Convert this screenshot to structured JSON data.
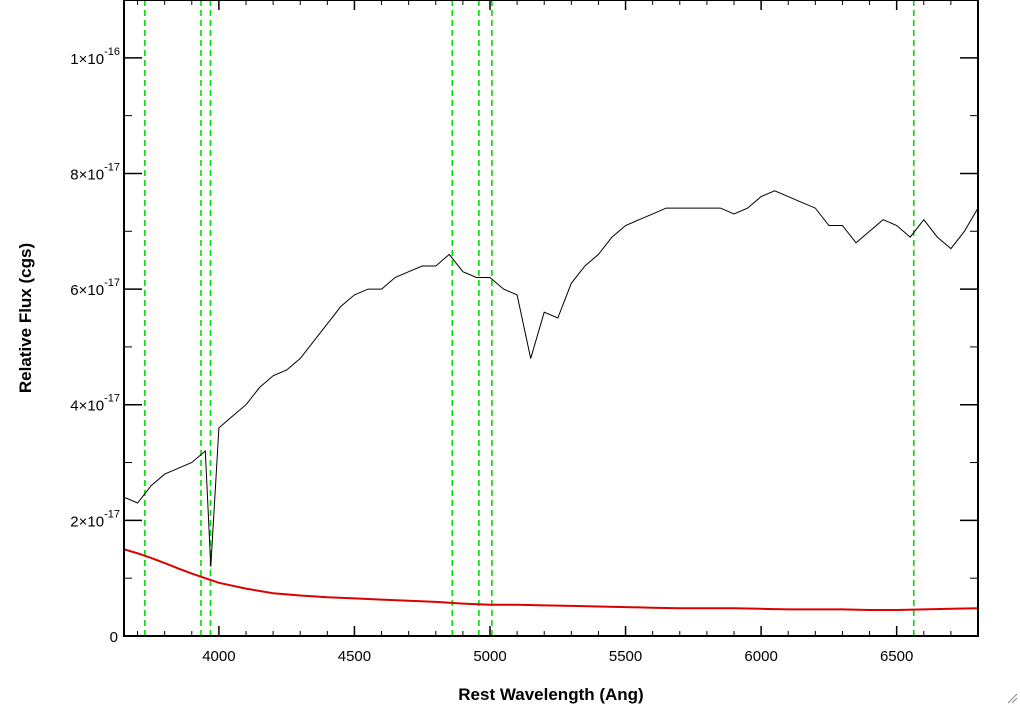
{
  "chart_data": {
    "type": "line",
    "title": "",
    "xlabel": "Rest Wavelength (Ang)",
    "ylabel": "Relative Flux (cgs)",
    "xlim": [
      3650,
      6800
    ],
    "ylim": [
      0,
      1.1e-16
    ],
    "x_ticks": [
      4000,
      4500,
      5000,
      5500,
      6000,
      6500
    ],
    "x_tick_labels": [
      "4000",
      "4500",
      "5000",
      "5500",
      "6000",
      "6500"
    ],
    "y_ticks": [
      0,
      2e-17,
      4e-17,
      6e-17,
      8e-17,
      1e-16
    ],
    "y_tick_labels": [
      {
        "mantissa": "0",
        "exponent": ""
      },
      {
        "mantissa": "2×10",
        "exponent": "-17"
      },
      {
        "mantissa": "4×10",
        "exponent": "-17"
      },
      {
        "mantissa": "6×10",
        "exponent": "-17"
      },
      {
        "mantissa": "8×10",
        "exponent": "-17"
      },
      {
        "mantissa": "1×10",
        "exponent": "-16"
      }
    ],
    "grid": false,
    "legend": "none",
    "series": [
      {
        "color": "#000000",
        "x": [
          3650,
          3700,
          3750,
          3800,
          3850,
          3900,
          3950,
          3970,
          4000,
          4050,
          4100,
          4150,
          4200,
          4250,
          4300,
          4350,
          4400,
          4450,
          4500,
          4550,
          4600,
          4650,
          4700,
          4750,
          4800,
          4850,
          4900,
          4950,
          5000,
          5050,
          5100,
          5150,
          5200,
          5250,
          5300,
          5350,
          5400,
          5450,
          5500,
          5550,
          5600,
          5650,
          5700,
          5750,
          5800,
          5850,
          5900,
          5950,
          6000,
          6050,
          6100,
          6150,
          6200,
          6250,
          6300,
          6350,
          6400,
          6450,
          6500,
          6550,
          6600,
          6650,
          6700,
          6750,
          6800
        ],
        "y": [
          2.4e-17,
          2.3e-17,
          2.6e-17,
          2.8e-17,
          2.9e-17,
          3e-17,
          3.2e-17,
          1.2e-17,
          3.6e-17,
          3.8e-17,
          4e-17,
          4.3e-17,
          4.5e-17,
          4.6e-17,
          4.8e-17,
          5.1e-17,
          5.4e-17,
          5.7e-17,
          5.9e-17,
          6e-17,
          6e-17,
          6.2e-17,
          6.3e-17,
          6.4e-17,
          6.4e-17,
          6.6e-17,
          6.3e-17,
          6.2e-17,
          6.2e-17,
          6e-17,
          5.9e-17,
          4.8e-17,
          5.6e-17,
          5.5e-17,
          6.1e-17,
          6.4e-17,
          6.6e-17,
          6.9e-17,
          7.1e-17,
          7.2e-17,
          7.3e-17,
          7.4e-17,
          7.4e-17,
          7.4e-17,
          7.4e-17,
          7.4e-17,
          7.3e-17,
          7.4e-17,
          7.6e-17,
          7.7e-17,
          7.6e-17,
          7.5e-17,
          7.4e-17,
          7.1e-17,
          7.1e-17,
          6.8e-17,
          7e-17,
          7.2e-17,
          7.1e-17,
          6.9e-17,
          7.2e-17,
          6.9e-17,
          6.7e-17,
          7e-17,
          7.4e-17
        ]
      },
      {
        "color": "#dd0000",
        "x": [
          3650,
          3700,
          3750,
          3800,
          3850,
          3900,
          3950,
          4000,
          4100,
          4200,
          4300,
          4400,
          4500,
          4600,
          4700,
          4800,
          4900,
          5000,
          5100,
          5200,
          5300,
          5400,
          5500,
          5600,
          5700,
          5800,
          5900,
          6000,
          6100,
          6200,
          6300,
          6400,
          6500,
          6600,
          6700,
          6800
        ],
        "y": [
          1.5e-17,
          1.43e-17,
          1.35e-17,
          1.26e-17,
          1.17e-17,
          1.08e-17,
          1e-17,
          9.2e-18,
          8.2e-18,
          7.4e-18,
          7e-18,
          6.7e-18,
          6.5e-18,
          6.3e-18,
          6.1e-18,
          5.9e-18,
          5.6e-18,
          5.4e-18,
          5.4e-18,
          5.3e-18,
          5.2e-18,
          5.1e-18,
          5e-18,
          4.9e-18,
          4.8e-18,
          4.8e-18,
          4.8e-18,
          4.7e-18,
          4.6e-18,
          4.6e-18,
          4.6e-18,
          4.5e-18,
          4.5e-18,
          4.6e-18,
          4.7e-18,
          4.8e-18
        ]
      }
    ],
    "reference_lines": {
      "color": "#00dd00",
      "style": "dashed",
      "x": [
        3727,
        3934,
        3969,
        4861,
        4959,
        5007,
        6563
      ]
    }
  }
}
